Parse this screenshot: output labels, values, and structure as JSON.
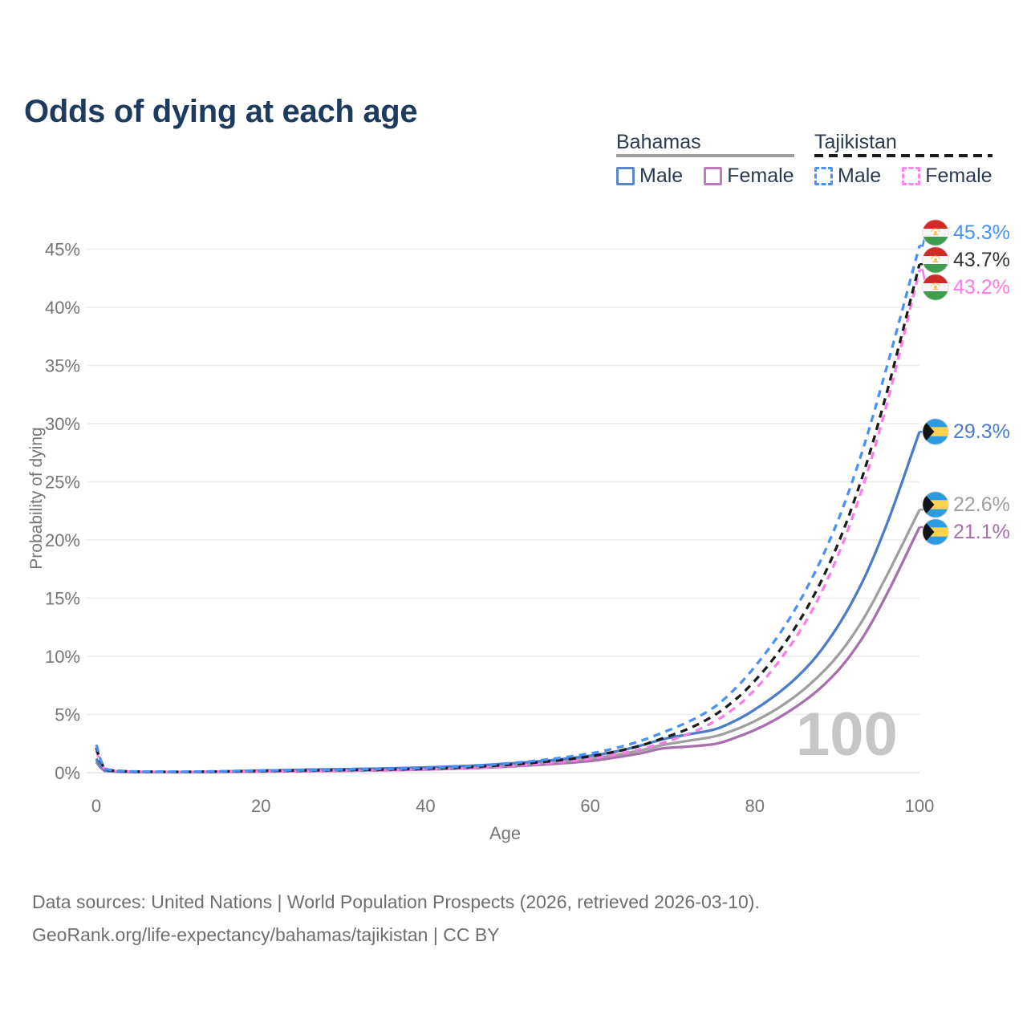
{
  "title": "Odds of dying at each age",
  "legend": {
    "groups": [
      {
        "country": "Bahamas",
        "line_color": "#9e9e9e",
        "line_style": "solid",
        "items": [
          {
            "label": "Male",
            "color": "#5b87c7",
            "style": "solid"
          },
          {
            "label": "Female",
            "color": "#c279c0",
            "style": "solid"
          }
        ]
      },
      {
        "country": "Tajikistan",
        "line_color": "#1b1b1b",
        "line_style": "dashed",
        "items": [
          {
            "label": "Male",
            "color": "#4b90f7",
            "style": "dashed"
          },
          {
            "label": "Female",
            "color": "#ff84ec",
            "style": "dashed"
          }
        ]
      }
    ]
  },
  "chart_data": {
    "type": "line",
    "title": "Odds of dying at each age",
    "xlabel": "Age",
    "ylabel": "Probability of dying",
    "xlim": [
      0,
      100
    ],
    "ylim": [
      0,
      46.5
    ],
    "x_ticks": [
      0,
      20,
      40,
      60,
      80,
      100
    ],
    "y_ticks": [
      0,
      5,
      10,
      15,
      20,
      25,
      30,
      35,
      40,
      45
    ],
    "y_tick_suffix": "%",
    "grid": "horizontal",
    "legend_position": "top-right",
    "hover_watermark": "100",
    "anchor_ages": [
      0,
      1,
      3,
      5,
      10,
      15,
      20,
      25,
      30,
      35,
      40,
      45,
      50,
      55,
      60,
      63,
      66,
      69,
      72,
      75,
      78,
      81,
      84,
      87,
      90,
      93,
      96,
      100
    ],
    "flags": {
      "tj": {
        "red": "#cf2b27",
        "white": "#f7f7f7",
        "green": "#3f9e4d",
        "gold": "#f6c14a"
      },
      "bs": {
        "aqua": "#2d9be1",
        "gold": "#ffd34f",
        "black": "#141414"
      }
    },
    "series": [
      {
        "id": "bs_female",
        "name": "Bahamas Female",
        "country": "Bahamas",
        "sex": "Female",
        "flag": "bs",
        "color": "#a86fae",
        "label_color": "#a86fae",
        "dashed": false,
        "end_label": "21.1%",
        "end_value": 21.1,
        "values": [
          0.9,
          0.16,
          0.07,
          0.05,
          0.05,
          0.06,
          0.09,
          0.12,
          0.16,
          0.2,
          0.27,
          0.37,
          0.52,
          0.73,
          1.0,
          1.3,
          1.65,
          2.1,
          2.25,
          2.45,
          3.1,
          4.0,
          5.2,
          6.7,
          8.7,
          11.5,
          15.3,
          21.1
        ]
      },
      {
        "id": "bs_both",
        "name": "Bahamas Both sexes",
        "country": "Bahamas",
        "sex": "Both",
        "flag": "bs",
        "color": "#9f9f9f",
        "label_color": "#9f9f9f",
        "dashed": false,
        "end_label": "22.6%",
        "end_value": 22.6,
        "values": [
          1.05,
          0.18,
          0.08,
          0.06,
          0.05,
          0.08,
          0.14,
          0.19,
          0.23,
          0.28,
          0.36,
          0.47,
          0.64,
          0.88,
          1.2,
          1.5,
          1.9,
          2.4,
          2.75,
          3.1,
          3.8,
          4.8,
          6.1,
          7.8,
          10.0,
          13.0,
          16.9,
          22.6
        ]
      },
      {
        "id": "bs_male",
        "name": "Bahamas Male",
        "country": "Bahamas",
        "sex": "Male",
        "flag": "bs",
        "color": "#4a7cc8",
        "label_color": "#4a7cc8",
        "dashed": false,
        "end_label": "29.3%",
        "end_value": 29.3,
        "values": [
          1.2,
          0.2,
          0.09,
          0.07,
          0.06,
          0.1,
          0.18,
          0.25,
          0.3,
          0.36,
          0.45,
          0.58,
          0.78,
          1.05,
          1.45,
          1.8,
          2.3,
          2.9,
          3.3,
          3.7,
          4.6,
          5.9,
          7.5,
          9.6,
          12.5,
          16.3,
          21.3,
          29.3
        ]
      },
      {
        "id": "tj_female",
        "name": "Tajikistan Female",
        "country": "Tajikistan",
        "sex": "Female",
        "flag": "tj",
        "color": "#fb7be8",
        "label_color": "#fb7be8",
        "dashed": true,
        "end_label": "43.2%",
        "end_value": 43.2,
        "values": [
          1.9,
          0.28,
          0.12,
          0.08,
          0.06,
          0.08,
          0.11,
          0.14,
          0.17,
          0.21,
          0.27,
          0.38,
          0.56,
          0.82,
          1.2,
          1.55,
          2.0,
          2.6,
          3.35,
          4.35,
          5.8,
          7.9,
          10.6,
          14.0,
          18.5,
          24.3,
          31.6,
          43.2
        ]
      },
      {
        "id": "tj_both",
        "name": "Tajikistan Both sexes",
        "country": "Tajikistan",
        "sex": "Both",
        "flag": "tj",
        "color": "#1c1c1c",
        "label_color": "#333333",
        "dashed": true,
        "end_label": "43.7%",
        "end_value": 43.7,
        "values": [
          2.15,
          0.3,
          0.13,
          0.09,
          0.07,
          0.1,
          0.15,
          0.19,
          0.23,
          0.27,
          0.34,
          0.47,
          0.68,
          0.98,
          1.4,
          1.8,
          2.3,
          3.0,
          3.8,
          4.9,
          6.5,
          8.7,
          11.5,
          15.0,
          19.5,
          25.3,
          32.6,
          43.7
        ]
      },
      {
        "id": "tj_male",
        "name": "Tajikistan Male",
        "country": "Tajikistan",
        "sex": "Male",
        "flag": "tj",
        "color": "#4b90f7",
        "label_color": "#4b90f7",
        "dashed": true,
        "end_label": "45.3%",
        "end_value": 45.3,
        "values": [
          2.4,
          0.35,
          0.15,
          0.1,
          0.08,
          0.12,
          0.18,
          0.22,
          0.27,
          0.32,
          0.4,
          0.55,
          0.8,
          1.15,
          1.65,
          2.1,
          2.7,
          3.5,
          4.4,
          5.6,
          7.5,
          10.0,
          13.0,
          16.8,
          21.5,
          27.5,
          34.8,
          45.3
        ]
      }
    ]
  },
  "footer": {
    "line1": "Data sources: United Nations | World Population Prospects (2026, retrieved 2026-03-10).",
    "line2": "GeoRank.org/life-expectancy/bahamas/tajikistan | CC BY"
  }
}
